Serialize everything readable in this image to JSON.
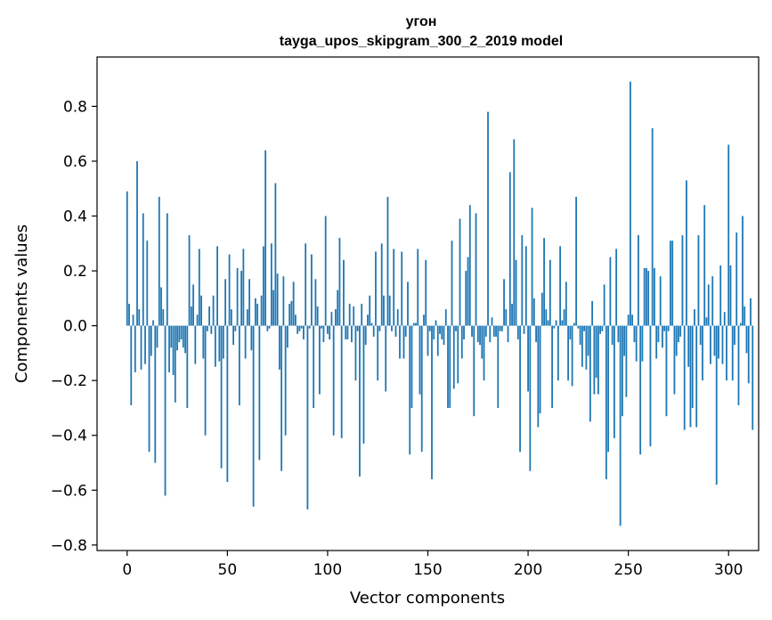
{
  "chart_data": {
    "type": "bar",
    "title": "угон",
    "subtitle": "tayga_upos_skipgram_300_2_2019 model",
    "xlabel": "Vector components",
    "ylabel": "Components values",
    "xlim": [
      -15,
      315
    ],
    "ylim": [
      -0.82,
      0.98
    ],
    "xticks": [
      0,
      50,
      100,
      150,
      200,
      250,
      300
    ],
    "yticks": [
      -0.8,
      -0.6,
      -0.4,
      -0.2,
      0.0,
      0.2,
      0.4,
      0.6,
      0.8
    ],
    "bar_color": "#1f77b4",
    "grid": false,
    "x_start": 0,
    "values": [
      0.49,
      0.08,
      -0.29,
      0.04,
      -0.17,
      0.6,
      0.06,
      -0.16,
      0.41,
      -0.14,
      0.31,
      -0.46,
      -0.11,
      0.02,
      -0.5,
      -0.08,
      0.47,
      0.14,
      0.06,
      -0.62,
      0.41,
      -0.17,
      -0.08,
      -0.18,
      -0.28,
      -0.09,
      -0.06,
      -0.05,
      -0.08,
      -0.1,
      -0.3,
      0.33,
      0.07,
      0.15,
      -0.14,
      0.04,
      0.28,
      0.11,
      -0.12,
      -0.4,
      -0.02,
      0.07,
      -0.03,
      0.11,
      -0.15,
      0.29,
      -0.13,
      -0.52,
      -0.12,
      0.17,
      -0.57,
      0.26,
      0.06,
      -0.07,
      -0.02,
      0.21,
      -0.29,
      0.2,
      0.28,
      -0.12,
      0.06,
      0.17,
      -0.09,
      -0.66,
      0.1,
      0.08,
      -0.49,
      0.11,
      0.29,
      0.64,
      -0.02,
      -0.01,
      0.3,
      0.13,
      0.52,
      0.19,
      -0.16,
      -0.53,
      0.18,
      -0.4,
      -0.08,
      0.08,
      0.09,
      0.16,
      0.04,
      -0.03,
      -0.02,
      -0.01,
      -0.05,
      0.3,
      -0.67,
      -0.01,
      0.26,
      -0.3,
      0.17,
      0.07,
      -0.25,
      -0.01,
      -0.06,
      0.4,
      -0.03,
      -0.05,
      0.05,
      -0.4,
      0.06,
      0.13,
      0.32,
      -0.41,
      0.24,
      -0.05,
      -0.05,
      0.08,
      -0.06,
      0.07,
      -0.2,
      -0.02,
      -0.55,
      0.08,
      -0.43,
      -0.07,
      0.04,
      0.11,
      0.01,
      -0.04,
      0.27,
      -0.2,
      -0.02,
      0.3,
      0.11,
      -0.24,
      0.47,
      0.11,
      -0.02,
      0.28,
      -0.04,
      0.06,
      -0.12,
      0.27,
      -0.12,
      -0.04,
      0.16,
      -0.47,
      -0.3,
      0.01,
      0.01,
      0.28,
      -0.25,
      -0.46,
      0.04,
      0.24,
      -0.11,
      -0.02,
      -0.56,
      -0.05,
      0.02,
      -0.11,
      -0.03,
      -0.05,
      -0.07,
      0.06,
      -0.3,
      -0.3,
      0.31,
      -0.23,
      -0.02,
      -0.21,
      0.39,
      -0.12,
      -0.05,
      0.2,
      0.25,
      0.44,
      -0.04,
      -0.33,
      0.41,
      -0.06,
      -0.07,
      -0.12,
      -0.2,
      -0.04,
      0.78,
      -0.06,
      0.03,
      -0.04,
      -0.04,
      -0.3,
      -0.02,
      -0.02,
      0.17,
      0.06,
      -0.06,
      0.56,
      0.08,
      0.68,
      0.24,
      -0.05,
      -0.46,
      0.33,
      -0.03,
      0.29,
      -0.24,
      -0.53,
      0.43,
      0.1,
      -0.06,
      -0.37,
      -0.32,
      0.12,
      0.32,
      0.06,
      0.02,
      0.24,
      -0.3,
      -0.01,
      0.02,
      -0.2,
      0.29,
      0.02,
      0.06,
      0.16,
      -0.2,
      -0.05,
      -0.22,
      0.01,
      0.47,
      -0.01,
      -0.07,
      -0.15,
      -0.02,
      -0.16,
      -0.11,
      -0.35,
      0.09,
      -0.25,
      -0.19,
      -0.25,
      -0.03,
      -0.02,
      0.15,
      -0.56,
      -0.46,
      0.25,
      -0.07,
      -0.41,
      0.28,
      -0.06,
      -0.73,
      -0.33,
      -0.11,
      -0.26,
      0.04,
      0.89,
      0.04,
      -0.06,
      -0.13,
      0.33,
      -0.47,
      -0.13,
      0.21,
      0.21,
      0.2,
      -0.44,
      0.72,
      0.21,
      -0.12,
      -0.06,
      0.18,
      -0.08,
      -0.02,
      -0.33,
      -0.02,
      0.31,
      0.31,
      -0.25,
      -0.11,
      -0.06,
      -0.04,
      0.33,
      -0.38,
      0.53,
      -0.15,
      -0.37,
      -0.3,
      0.06,
      -0.37,
      0.33,
      -0.07,
      -0.2,
      0.44,
      0.03,
      0.15,
      -0.14,
      0.18,
      -0.11,
      -0.58,
      -0.12,
      0.22,
      -0.14,
      0.05,
      -0.2,
      0.66,
      0.22,
      -0.2,
      -0.07,
      0.34,
      -0.29,
      0.01,
      0.4,
      0.07,
      -0.1,
      -0.21,
      0.1,
      -0.38
    ]
  }
}
